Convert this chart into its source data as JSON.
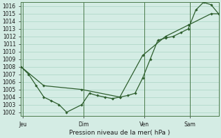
{
  "background_color": "#d4ece4",
  "grid_color": "#a8d4c4",
  "line_color": "#2d5e2d",
  "marker_color": "#2d5e2d",
  "title": "Pression niveau de la mer( hPa )",
  "ylim": [
    1001.5,
    1016.5
  ],
  "yticks": [
    1002,
    1003,
    1004,
    1005,
    1006,
    1007,
    1008,
    1009,
    1010,
    1011,
    1012,
    1013,
    1014,
    1015,
    1016
  ],
  "day_labels": [
    "Jeu",
    "Dim",
    "Ven",
    "Sam"
  ],
  "day_positions": [
    0.5,
    16.5,
    32.5,
    44.5
  ],
  "xlim": [
    0,
    52
  ],
  "series1_x": [
    0,
    2,
    4,
    6,
    8,
    10,
    12,
    16,
    18,
    20,
    22,
    24,
    26,
    28,
    30,
    32,
    34,
    36,
    38,
    40,
    42,
    44,
    46,
    48,
    50,
    52
  ],
  "series1_y": [
    1008,
    1007,
    1005.5,
    1004,
    1003.5,
    1003,
    1002,
    1003,
    1004.5,
    1004.2,
    1004,
    1003.8,
    1004,
    1004.2,
    1004.5,
    1006.5,
    1009.0,
    1011.5,
    1011.8,
    1012.0,
    1012.5,
    1013.0,
    1015.5,
    1016.5,
    1016.2,
    1015.0
  ],
  "series2_x": [
    0,
    6,
    16,
    26,
    32,
    38,
    44,
    50,
    52
  ],
  "series2_y": [
    1008,
    1005.5,
    1005.0,
    1004.0,
    1009.5,
    1012.0,
    1013.5,
    1015.0,
    1015.0
  ],
  "vline_positions": [
    0.5,
    16.5,
    32.5,
    44.5
  ],
  "total_x": 52
}
